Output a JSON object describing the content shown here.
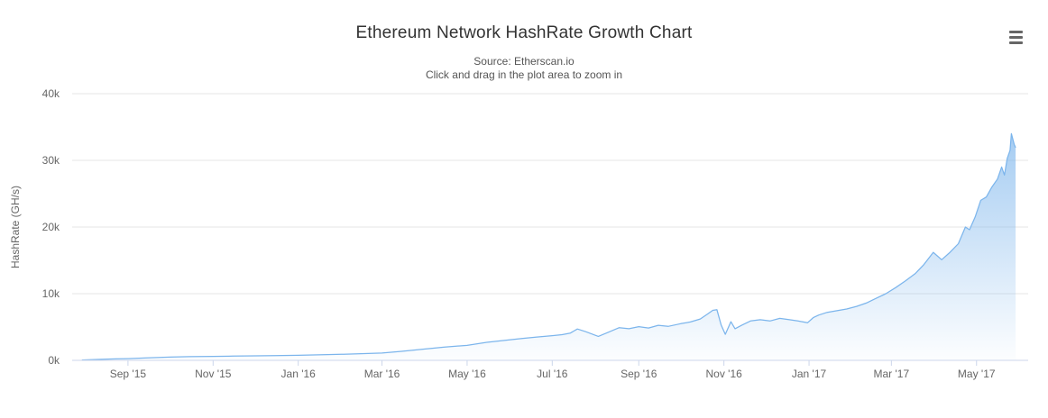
{
  "header": {
    "title": "Ethereum Network HashRate Growth Chart",
    "subtitle_line1": "Source: Etherscan.io",
    "subtitle_line2": "Click and drag in the plot area to zoom in"
  },
  "colors": {
    "line": "#7cb5ec",
    "fill_top": "rgba(124,181,236,0.8)",
    "fill_bottom": "rgba(124,181,236,0.02)",
    "grid": "#e6e6e6",
    "axis_line": "#ccd6eb",
    "tick_mark": "#ccd6eb",
    "title_text": "#333333",
    "subtitle_text": "#555555",
    "label_text": "#666666",
    "menu_icon": "#666666"
  },
  "chart_data": {
    "type": "area",
    "title": "Ethereum Network HashRate Growth Chart",
    "subtitle": [
      "Source: Etherscan.io",
      "Click and drag in the plot area to zoom in"
    ],
    "xlabel": "",
    "ylabel": "HashRate (GH/s)",
    "legend": "none",
    "grid": "horizontal-only",
    "x_range": [
      "2015-07-23",
      "2017-06-07"
    ],
    "ylim": [
      0,
      40000
    ],
    "y_ticks": [
      {
        "value": 0,
        "label": "0k"
      },
      {
        "value": 10000,
        "label": "10k"
      },
      {
        "value": 20000,
        "label": "20k"
      },
      {
        "value": 30000,
        "label": "30k"
      },
      {
        "value": 40000,
        "label": "40k"
      }
    ],
    "x_ticks": [
      {
        "date": "2015-09-01",
        "label": "Sep '15"
      },
      {
        "date": "2015-11-01",
        "label": "Nov '15"
      },
      {
        "date": "2016-01-01",
        "label": "Jan '16"
      },
      {
        "date": "2016-03-01",
        "label": "Mar '16"
      },
      {
        "date": "2016-05-01",
        "label": "May '16"
      },
      {
        "date": "2016-07-01",
        "label": "Jul '16"
      },
      {
        "date": "2016-09-01",
        "label": "Sep '16"
      },
      {
        "date": "2016-11-01",
        "label": "Nov '16"
      },
      {
        "date": "2017-01-01",
        "label": "Jan '17"
      },
      {
        "date": "2017-03-01",
        "label": "Mar '17"
      },
      {
        "date": "2017-05-01",
        "label": "May '17"
      }
    ],
    "series": [
      {
        "name": "HashRate",
        "unit": "GH/s",
        "points": [
          [
            "2015-07-30",
            60
          ],
          [
            "2015-08-08",
            120
          ],
          [
            "2015-08-20",
            200
          ],
          [
            "2015-09-01",
            260
          ],
          [
            "2015-09-15",
            380
          ],
          [
            "2015-10-01",
            480
          ],
          [
            "2015-10-15",
            550
          ],
          [
            "2015-11-01",
            600
          ],
          [
            "2015-11-15",
            640
          ],
          [
            "2015-12-01",
            670
          ],
          [
            "2015-12-15",
            700
          ],
          [
            "2016-01-01",
            760
          ],
          [
            "2016-01-15",
            820
          ],
          [
            "2016-02-01",
            900
          ],
          [
            "2016-02-15",
            1000
          ],
          [
            "2016-03-01",
            1090
          ],
          [
            "2016-03-15",
            1350
          ],
          [
            "2016-04-01",
            1700
          ],
          [
            "2016-04-15",
            2000
          ],
          [
            "2016-05-01",
            2250
          ],
          [
            "2016-05-15",
            2700
          ],
          [
            "2016-06-01",
            3100
          ],
          [
            "2016-06-10",
            3300
          ],
          [
            "2016-06-20",
            3500
          ],
          [
            "2016-07-01",
            3700
          ],
          [
            "2016-07-08",
            3850
          ],
          [
            "2016-07-14",
            4100
          ],
          [
            "2016-07-19",
            4700
          ],
          [
            "2016-07-25",
            4300
          ],
          [
            "2016-08-03",
            3600
          ],
          [
            "2016-08-10",
            4200
          ],
          [
            "2016-08-18",
            4900
          ],
          [
            "2016-08-25",
            4750
          ],
          [
            "2016-09-01",
            5050
          ],
          [
            "2016-09-08",
            4850
          ],
          [
            "2016-09-15",
            5250
          ],
          [
            "2016-09-22",
            5100
          ],
          [
            "2016-10-01",
            5500
          ],
          [
            "2016-10-08",
            5750
          ],
          [
            "2016-10-15",
            6200
          ],
          [
            "2016-10-20",
            6900
          ],
          [
            "2016-10-24",
            7500
          ],
          [
            "2016-10-27",
            7600
          ],
          [
            "2016-10-30",
            5300
          ],
          [
            "2016-11-02",
            3900
          ],
          [
            "2016-11-06",
            5800
          ],
          [
            "2016-11-09",
            4750
          ],
          [
            "2016-11-14",
            5300
          ],
          [
            "2016-11-20",
            5900
          ],
          [
            "2016-11-27",
            6100
          ],
          [
            "2016-12-04",
            5900
          ],
          [
            "2016-12-11",
            6300
          ],
          [
            "2016-12-18",
            6100
          ],
          [
            "2016-12-24",
            5900
          ],
          [
            "2016-12-31",
            5650
          ],
          [
            "2017-01-04",
            6400
          ],
          [
            "2017-01-08",
            6800
          ],
          [
            "2017-01-14",
            7200
          ],
          [
            "2017-01-21",
            7450
          ],
          [
            "2017-01-28",
            7700
          ],
          [
            "2017-02-04",
            8100
          ],
          [
            "2017-02-11",
            8600
          ],
          [
            "2017-02-18",
            9300
          ],
          [
            "2017-02-25",
            10000
          ],
          [
            "2017-03-04",
            10900
          ],
          [
            "2017-03-11",
            11900
          ],
          [
            "2017-03-18",
            13000
          ],
          [
            "2017-03-24",
            14300
          ],
          [
            "2017-03-31",
            16200
          ],
          [
            "2017-04-06",
            15100
          ],
          [
            "2017-04-12",
            16200
          ],
          [
            "2017-04-18",
            17500
          ],
          [
            "2017-04-23",
            20000
          ],
          [
            "2017-04-26",
            19600
          ],
          [
            "2017-04-30",
            21500
          ],
          [
            "2017-05-04",
            24000
          ],
          [
            "2017-05-08",
            24500
          ],
          [
            "2017-05-12",
            26000
          ],
          [
            "2017-05-16",
            27200
          ],
          [
            "2017-05-19",
            29000
          ],
          [
            "2017-05-21",
            27800
          ],
          [
            "2017-05-23",
            30300
          ],
          [
            "2017-05-25",
            31500
          ],
          [
            "2017-05-26",
            34000
          ],
          [
            "2017-05-28",
            32400
          ],
          [
            "2017-05-29",
            31900
          ]
        ]
      }
    ]
  }
}
